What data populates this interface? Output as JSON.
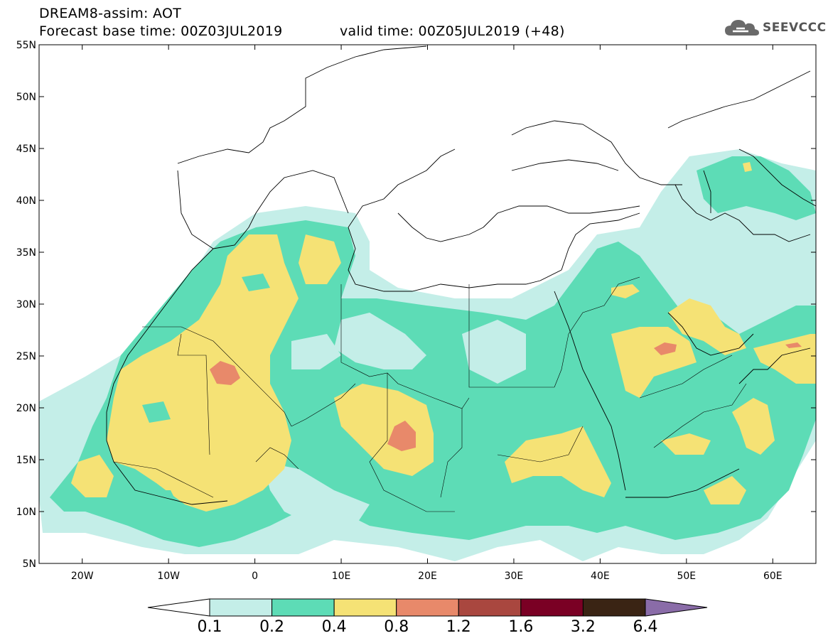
{
  "header": {
    "title": "DREAM8-assim: AOT",
    "forecast_base": "Forecast base time: 00Z03JUL2019",
    "valid_time": "valid time: 00Z05JUL2019 (+48)"
  },
  "brand": {
    "name": "SEEVCCC",
    "icon": "cloud-logo-icon"
  },
  "map": {
    "lat_labels": [
      "55N",
      "50N",
      "45N",
      "40N",
      "35N",
      "30N",
      "25N",
      "20N",
      "15N",
      "10N",
      "5N"
    ],
    "lon_labels": [
      "20W",
      "10W",
      "0",
      "10E",
      "20E",
      "30E",
      "40E",
      "50E",
      "60E"
    ],
    "lat_range": [
      5,
      55
    ],
    "lon_range": [
      -25,
      65
    ],
    "variable": "AOT"
  },
  "colorbar": {
    "labels": [
      "0.1",
      "0.2",
      "0.4",
      "0.8",
      "1.2",
      "1.6",
      "3.2",
      "6.4"
    ],
    "colors": [
      "#ffffff",
      "#c4eee8",
      "#5ddcb6",
      "#f5e275",
      "#e8896a",
      "#a9473f",
      "#7a0024",
      "#3a2414",
      "#8a6ca8"
    ]
  }
}
